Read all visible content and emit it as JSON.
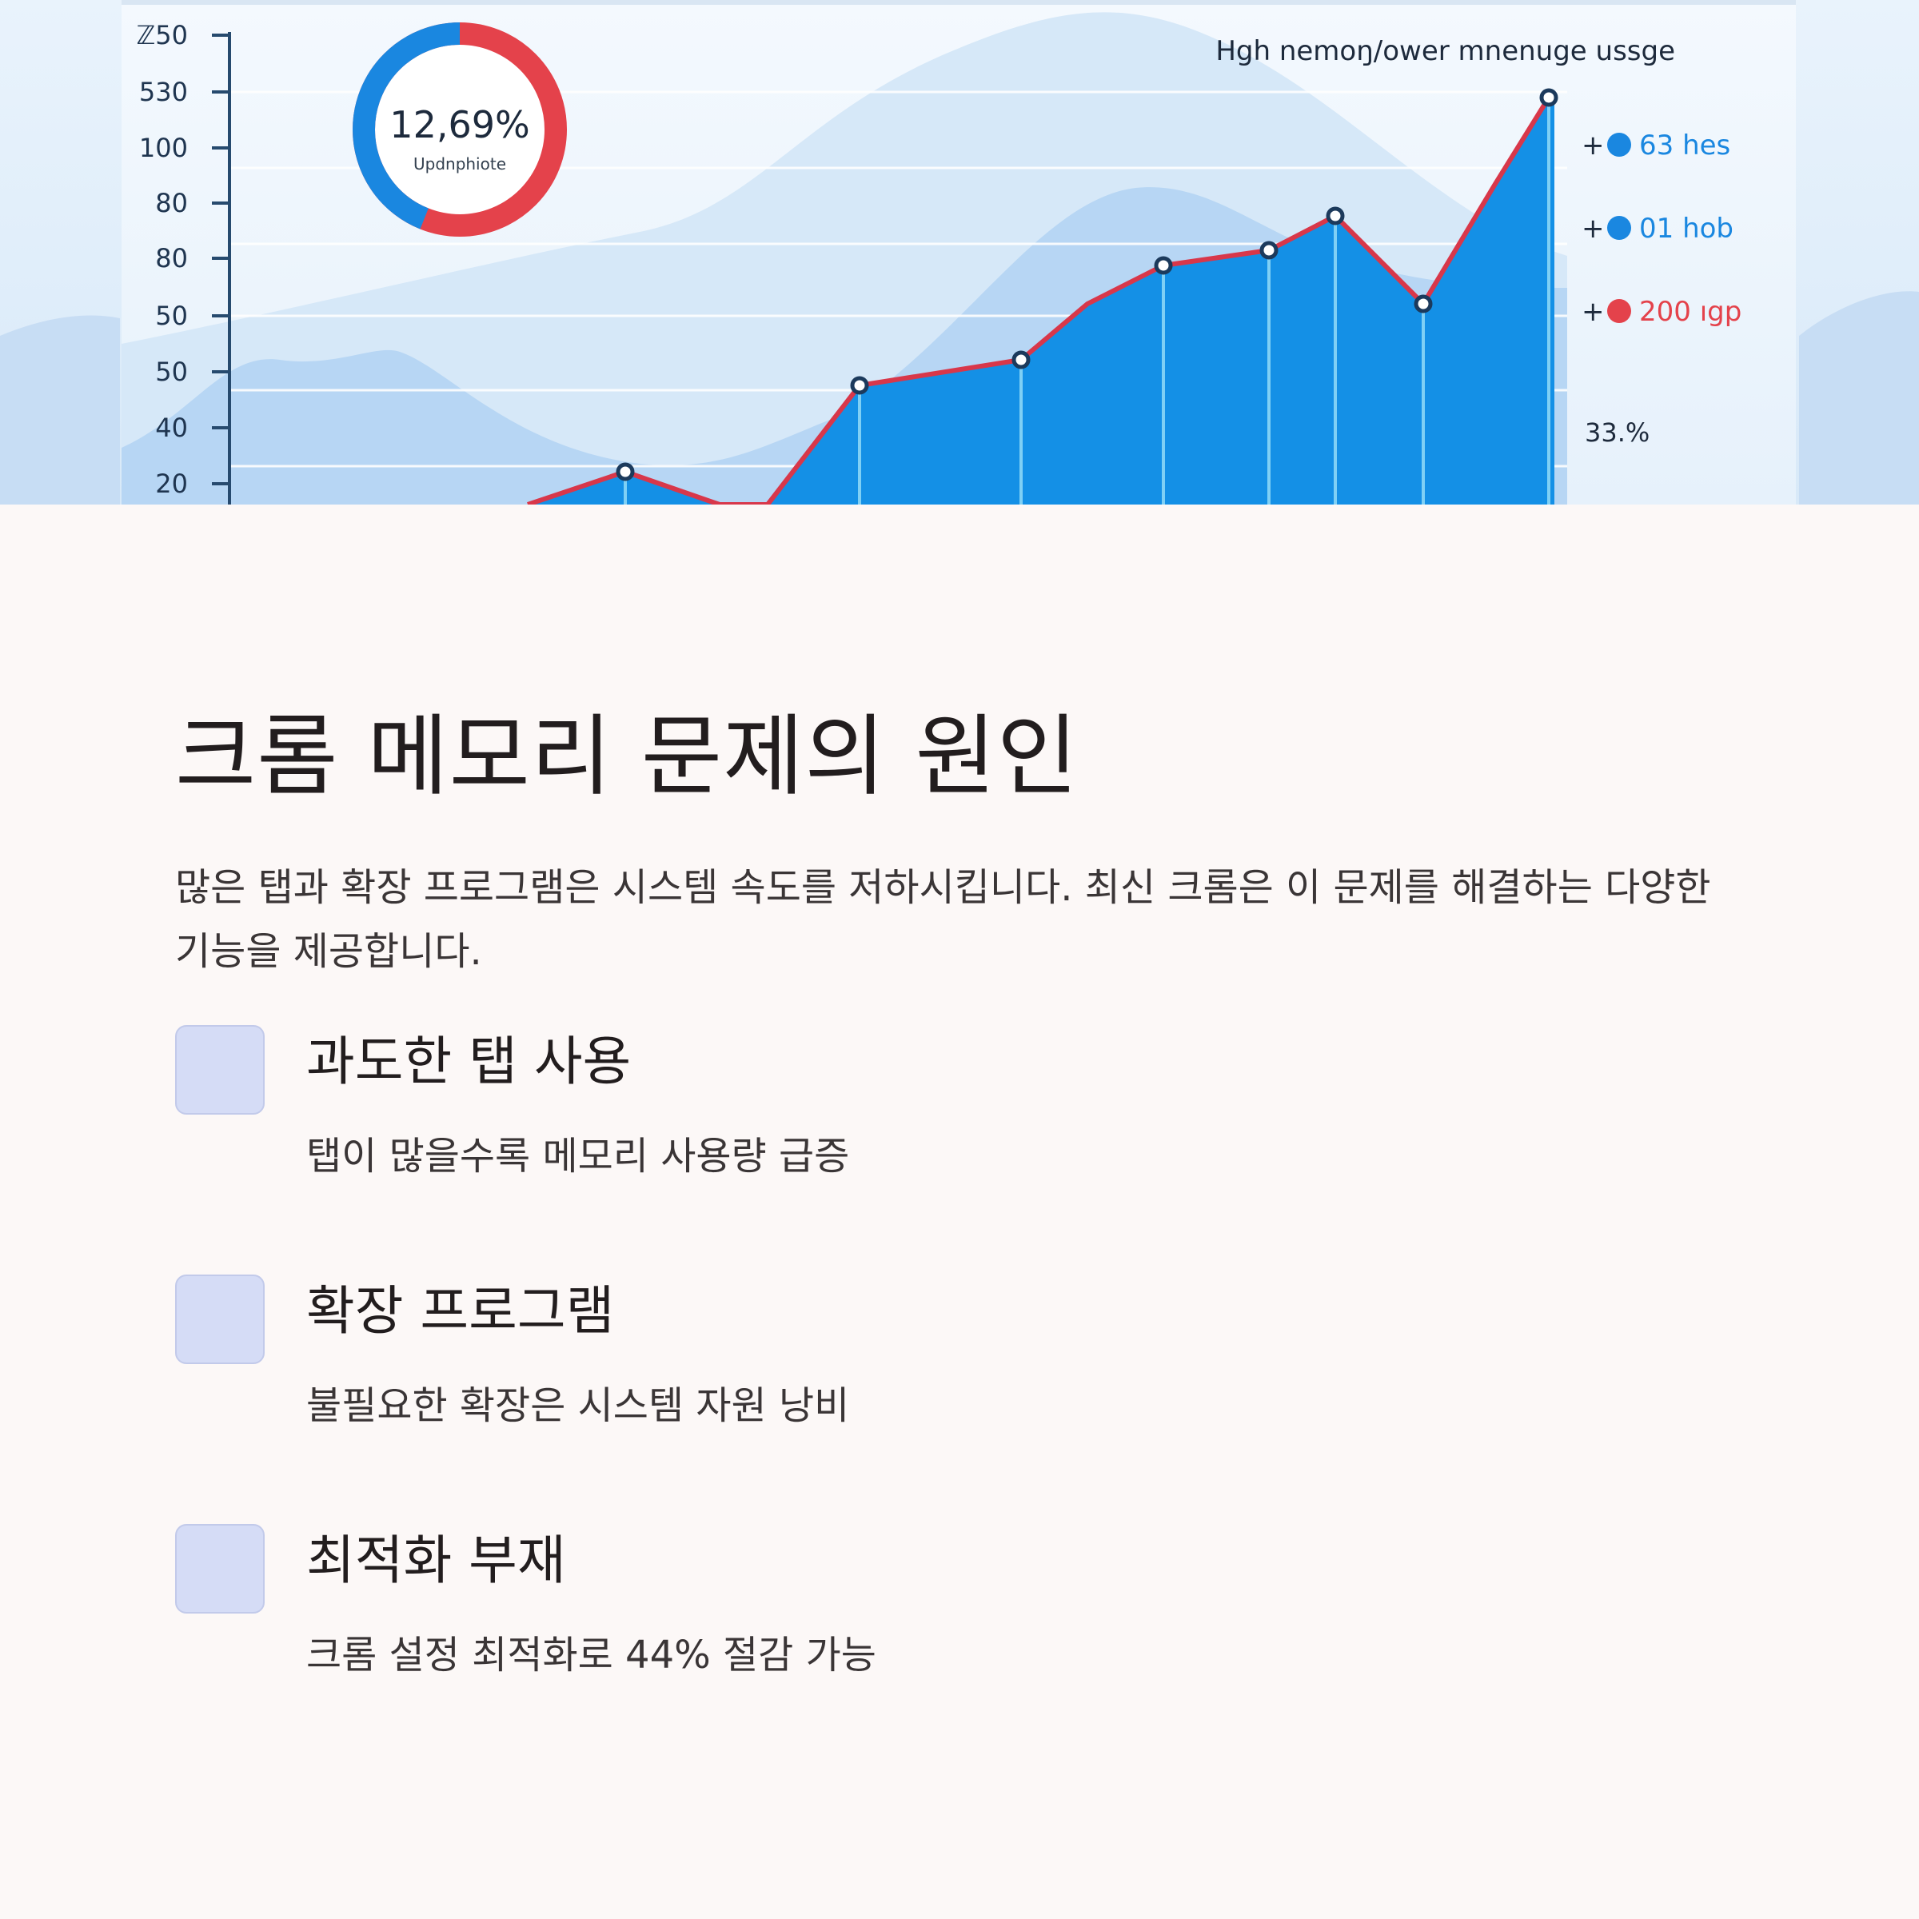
{
  "hero_chart": {
    "title": "Hgh nemoŋ/ower mnenuge ussge",
    "y_ticks": [
      "ℤ50",
      "530",
      "100",
      "80",
      "80",
      "50",
      "50",
      "40",
      "20"
    ],
    "donut": {
      "value": "12,69%",
      "label": "Updnphiote",
      "blue_fraction": 0.44,
      "blue": "#1a87e0",
      "red": "#e4424b"
    },
    "legend": [
      {
        "marker": "+",
        "text": "63 hes",
        "color": "#1a87e0"
      },
      {
        "marker": "+",
        "text": "01 hob",
        "color": "#1a87e0"
      },
      {
        "marker": "+",
        "text": "200 ıgp",
        "color": "#e4424b"
      }
    ],
    "extra_label": "33.%",
    "colors": {
      "area": "#1490e6",
      "line": "#d8374a",
      "wave_light": "#d6e8f8",
      "wave_mid": "#b2d3f3"
    }
  },
  "section": {
    "title": "크롬 메모리 문제의 원인",
    "intro": "많은 탭과 확장 프로그램은 시스템 속도를 저하시킵니다. 최신 크롬은 이 문제를 해결하는 다양한 기능을 제공합니다."
  },
  "items": [
    {
      "title": "과도한 탭 사용",
      "desc": "탭이 많을수록 메모리 사용량 급증"
    },
    {
      "title": "확장 프로그램",
      "desc": "불필요한 확장은 시스템 자원 낭비"
    },
    {
      "title": "최적화 부재",
      "desc": "크롬 설정 최적화로 44% 절감 가능"
    }
  ]
}
